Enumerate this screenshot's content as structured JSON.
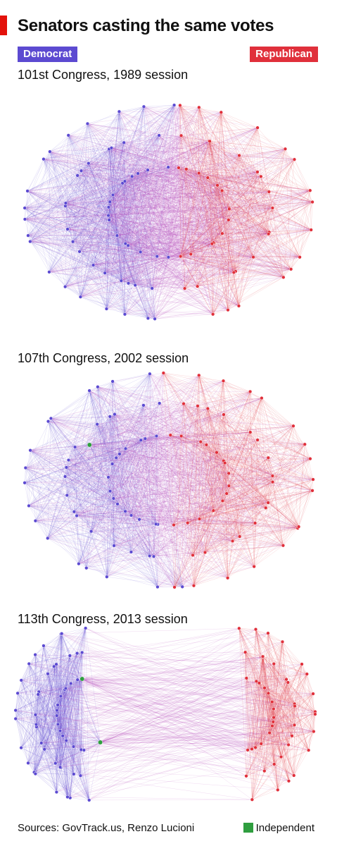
{
  "title": "Senators casting the same votes",
  "legend": {
    "democrat": "Democrat",
    "republican": "Republican",
    "independent": "Independent"
  },
  "colors": {
    "democrat": "#5c4ad1",
    "republican": "#e0303b",
    "independent": "#2f9e3f",
    "accent": "#e3120b"
  },
  "networks": [
    {
      "label": "101st Congress, 1989 session",
      "democrats": 55,
      "republicans": 45,
      "independents": 0,
      "overlap": "high"
    },
    {
      "label": "107th Congress, 2002 session",
      "democrats": 50,
      "republicans": 49,
      "independents": 1,
      "overlap": "medium"
    },
    {
      "label": "113th Congress, 2013 session",
      "democrats": 53,
      "republicans": 45,
      "independents": 2,
      "overlap": "low"
    }
  ],
  "source": "Sources: GovTrack.us, Renzo Lucioni"
}
